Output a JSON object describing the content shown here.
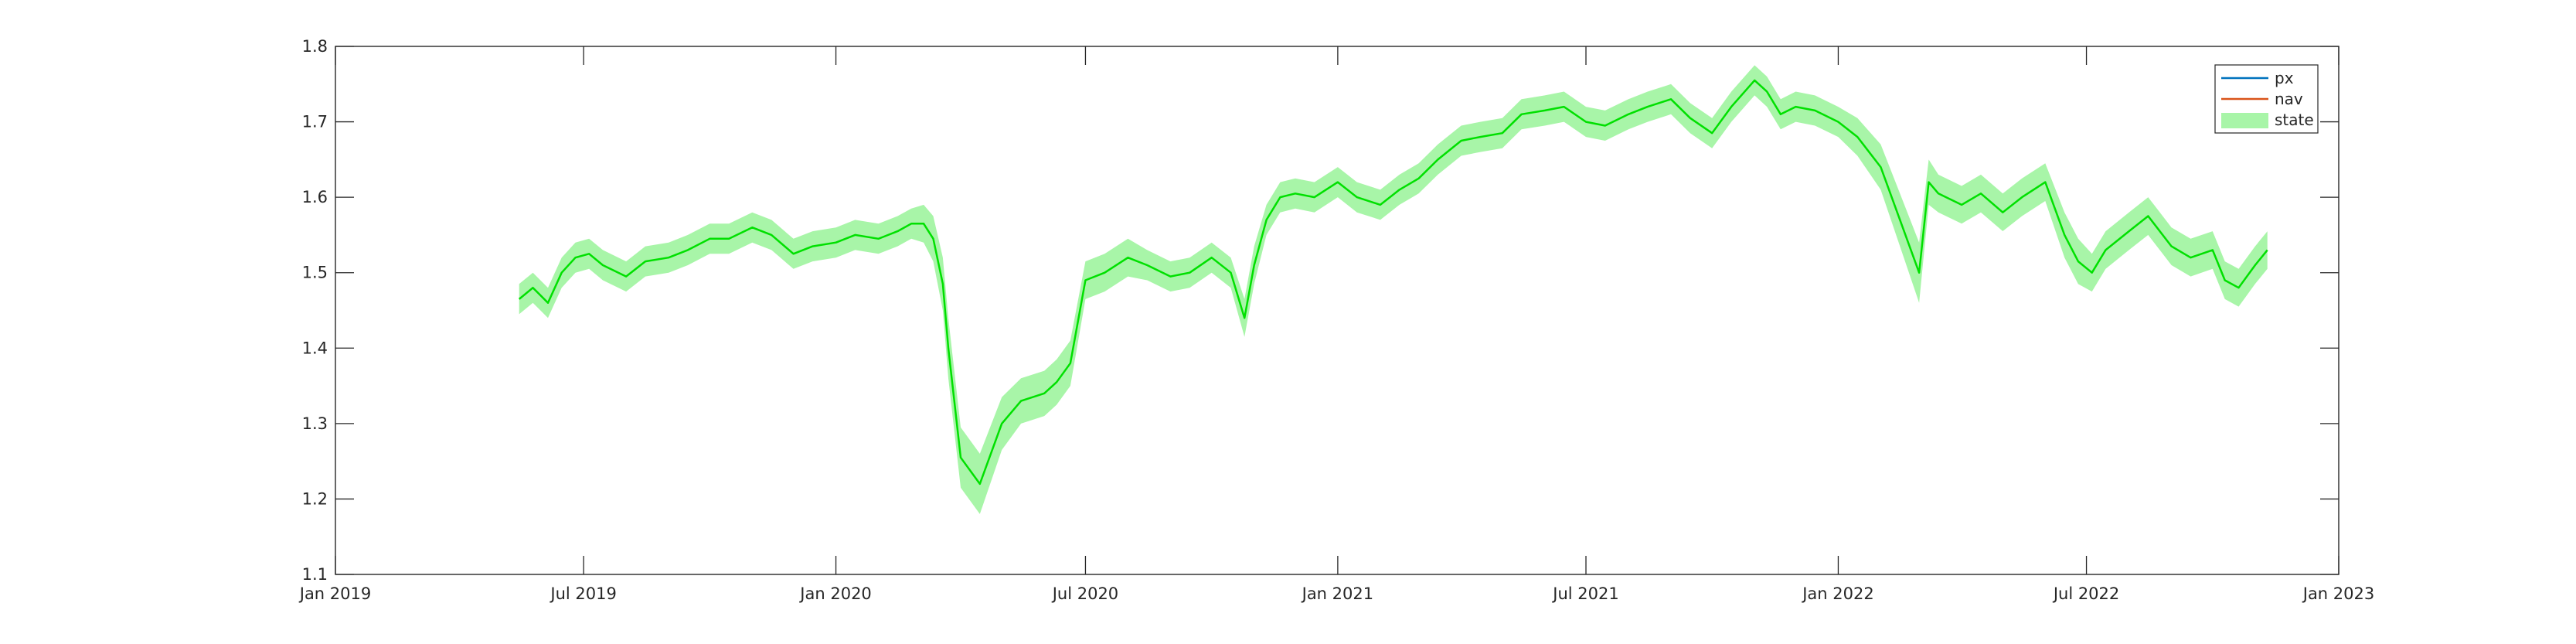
{
  "chart_data": {
    "type": "line",
    "title": "",
    "xlabel": "",
    "ylabel": "",
    "x_range": [
      "2019-01-01",
      "2023-01-01"
    ],
    "ylim": [
      1.1,
      1.8
    ],
    "x_ticks": [
      "2019-01-01",
      "2019-07-01",
      "2020-01-01",
      "2020-07-01",
      "2021-01-01",
      "2021-07-01",
      "2022-01-01",
      "2022-07-01",
      "2023-01-01"
    ],
    "x_tick_labels": [
      "Jan 2019",
      "Jul 2019",
      "Jan 2020",
      "Jul 2020",
      "Jan 2021",
      "Jul 2021",
      "Jan 2022",
      "Jul 2022",
      "Jan 2023"
    ],
    "y_ticks": [
      1.1,
      1.2,
      1.3,
      1.4,
      1.5,
      1.6,
      1.7,
      1.8
    ],
    "y_tick_labels": [
      "1.1",
      "1.2",
      "1.3",
      "1.4",
      "1.5",
      "1.6",
      "1.7",
      "1.8"
    ],
    "grid": false,
    "legend": {
      "position": "top-right",
      "entries": [
        "px",
        "nav",
        "state"
      ]
    },
    "series": [
      {
        "name": "px",
        "kind": "line",
        "color": "#0072BD",
        "dates": [],
        "values": []
      },
      {
        "name": "nav",
        "kind": "line",
        "color": "#D95319",
        "dates": [],
        "values": []
      },
      {
        "name": "state",
        "kind": "line-with-band",
        "color": "#00E000",
        "band_color": "#A8F5A8",
        "dates": [
          "2019-05-15",
          "2019-05-25",
          "2019-06-05",
          "2019-06-15",
          "2019-06-25",
          "2019-07-05",
          "2019-07-15",
          "2019-08-01",
          "2019-08-15",
          "2019-09-01",
          "2019-09-15",
          "2019-10-01",
          "2019-10-15",
          "2019-11-01",
          "2019-11-15",
          "2019-12-01",
          "2019-12-15",
          "2020-01-01",
          "2020-01-15",
          "2020-02-01",
          "2020-02-15",
          "2020-02-25",
          "2020-03-05",
          "2020-03-12",
          "2020-03-19",
          "2020-03-23",
          "2020-04-01",
          "2020-04-15",
          "2020-05-01",
          "2020-05-15",
          "2020-06-01",
          "2020-06-10",
          "2020-06-20",
          "2020-07-01",
          "2020-07-15",
          "2020-08-01",
          "2020-08-15",
          "2020-09-01",
          "2020-09-15",
          "2020-10-01",
          "2020-10-15",
          "2020-10-25",
          "2020-11-01",
          "2020-11-10",
          "2020-11-20",
          "2020-12-01",
          "2020-12-15",
          "2021-01-01",
          "2021-01-15",
          "2021-02-01",
          "2021-02-15",
          "2021-03-01",
          "2021-03-15",
          "2021-04-01",
          "2021-04-15",
          "2021-05-01",
          "2021-05-15",
          "2021-06-01",
          "2021-06-15",
          "2021-07-01",
          "2021-07-15",
          "2021-08-01",
          "2021-08-15",
          "2021-09-01",
          "2021-09-15",
          "2021-10-01",
          "2021-10-15",
          "2021-11-01",
          "2021-11-10",
          "2021-11-20",
          "2021-12-01",
          "2021-12-15",
          "2022-01-01",
          "2022-01-15",
          "2022-02-01",
          "2022-02-15",
          "2022-03-01",
          "2022-03-08",
          "2022-03-15",
          "2022-04-01",
          "2022-04-15",
          "2022-05-01",
          "2022-05-15",
          "2022-06-01",
          "2022-06-15",
          "2022-06-25",
          "2022-07-05",
          "2022-07-15",
          "2022-08-01",
          "2022-08-15",
          "2022-09-01",
          "2022-09-15",
          "2022-10-01",
          "2022-10-10",
          "2022-10-20",
          "2022-11-01",
          "2022-11-10"
        ],
        "values": [
          1.465,
          1.48,
          1.46,
          1.5,
          1.52,
          1.525,
          1.51,
          1.495,
          1.515,
          1.52,
          1.53,
          1.545,
          1.545,
          1.56,
          1.55,
          1.525,
          1.535,
          1.54,
          1.55,
          1.545,
          1.555,
          1.565,
          1.565,
          1.545,
          1.485,
          1.4,
          1.255,
          1.22,
          1.3,
          1.33,
          1.34,
          1.355,
          1.38,
          1.49,
          1.5,
          1.52,
          1.51,
          1.495,
          1.5,
          1.52,
          1.5,
          1.44,
          1.51,
          1.57,
          1.6,
          1.605,
          1.6,
          1.62,
          1.6,
          1.59,
          1.61,
          1.625,
          1.65,
          1.675,
          1.68,
          1.685,
          1.71,
          1.715,
          1.72,
          1.7,
          1.695,
          1.71,
          1.72,
          1.73,
          1.705,
          1.685,
          1.72,
          1.755,
          1.74,
          1.71,
          1.72,
          1.715,
          1.7,
          1.68,
          1.64,
          1.57,
          1.5,
          1.62,
          1.605,
          1.59,
          1.605,
          1.58,
          1.6,
          1.62,
          1.55,
          1.515,
          1.5,
          1.53,
          1.555,
          1.575,
          1.535,
          1.52,
          1.53,
          1.49,
          1.48,
          1.51,
          1.53
        ],
        "band": [
          0.02,
          0.02,
          0.02,
          0.02,
          0.02,
          0.02,
          0.02,
          0.02,
          0.02,
          0.02,
          0.02,
          0.02,
          0.02,
          0.02,
          0.02,
          0.02,
          0.02,
          0.02,
          0.02,
          0.02,
          0.02,
          0.02,
          0.025,
          0.03,
          0.035,
          0.04,
          0.04,
          0.04,
          0.035,
          0.03,
          0.03,
          0.03,
          0.03,
          0.025,
          0.025,
          0.025,
          0.02,
          0.02,
          0.02,
          0.02,
          0.02,
          0.025,
          0.025,
          0.02,
          0.02,
          0.02,
          0.02,
          0.02,
          0.02,
          0.02,
          0.02,
          0.02,
          0.02,
          0.02,
          0.02,
          0.02,
          0.02,
          0.02,
          0.02,
          0.02,
          0.02,
          0.02,
          0.02,
          0.02,
          0.02,
          0.02,
          0.02,
          0.02,
          0.02,
          0.02,
          0.02,
          0.02,
          0.02,
          0.025,
          0.03,
          0.035,
          0.04,
          0.03,
          0.025,
          0.025,
          0.025,
          0.025,
          0.025,
          0.025,
          0.03,
          0.03,
          0.025,
          0.025,
          0.025,
          0.025,
          0.025,
          0.025,
          0.025,
          0.025,
          0.025,
          0.025,
          0.025
        ]
      }
    ]
  }
}
